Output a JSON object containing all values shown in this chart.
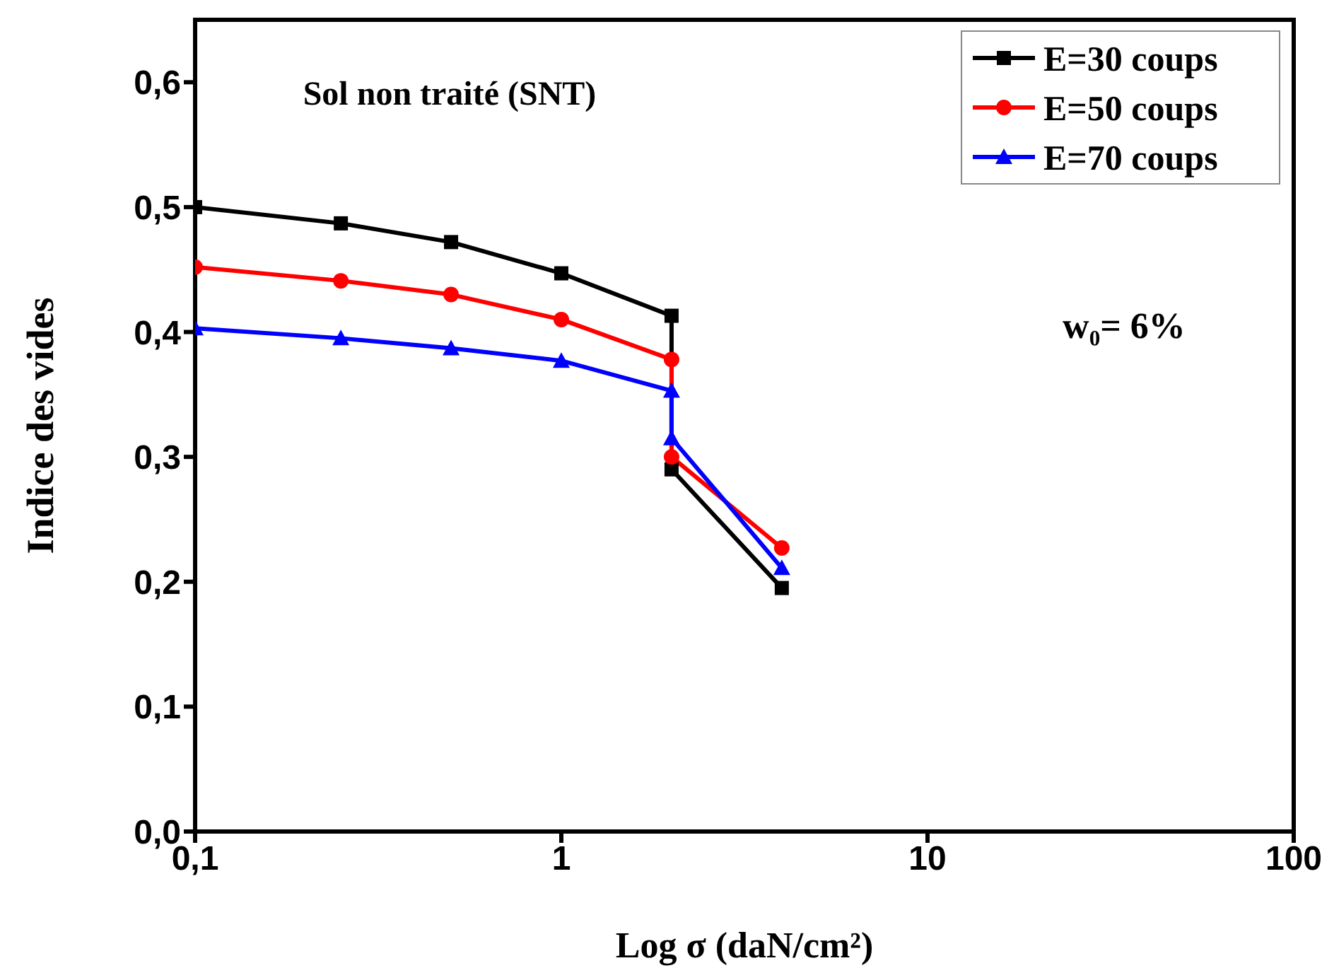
{
  "chart_data": {
    "type": "line",
    "title": "Sol non traité (SNT)",
    "xlabel": "Log σ (daN/cm²)",
    "ylabel": "Indice des vides",
    "annotations": [
      "w₀= 6%"
    ],
    "log": "x",
    "xlim": [
      0.1,
      100
    ],
    "xticks": [
      {
        "value": 0.1,
        "label": "0,1"
      },
      1,
      10,
      100
    ],
    "ylim": [
      0,
      0.65
    ],
    "yticks": [
      {
        "value": 0,
        "label": "0,0"
      },
      {
        "value": 0.1,
        "label": "0,1"
      },
      {
        "value": 0.2,
        "label": "0,2"
      },
      {
        "value": 0.3,
        "label": "0,3"
      },
      {
        "value": 0.4,
        "label": "0,4"
      },
      {
        "value": 0.5,
        "label": "0,5"
      },
      {
        "value": 0.6,
        "label": "0,6"
      }
    ],
    "grid": false,
    "legend": "top right",
    "line_style": "solid",
    "x": [
      0.1,
      0.25,
      0.5,
      1,
      2,
      2,
      4
    ],
    "series": [
      {
        "name": "E=30 coups",
        "color": "#000000",
        "marker": "square",
        "values": [
          0.5,
          0.487,
          0.472,
          0.447,
          0.413,
          0.29,
          0.195
        ]
      },
      {
        "name": "E=50 coups",
        "color": "#ff0000",
        "marker": "circle",
        "values": [
          0.452,
          0.441,
          0.43,
          0.41,
          0.378,
          0.3,
          0.227
        ]
      },
      {
        "name": "E=70 coups",
        "color": "#0000ff",
        "marker": "triangle",
        "values": [
          0.403,
          0.395,
          0.387,
          0.377,
          0.353,
          0.315,
          0.211
        ]
      }
    ]
  }
}
